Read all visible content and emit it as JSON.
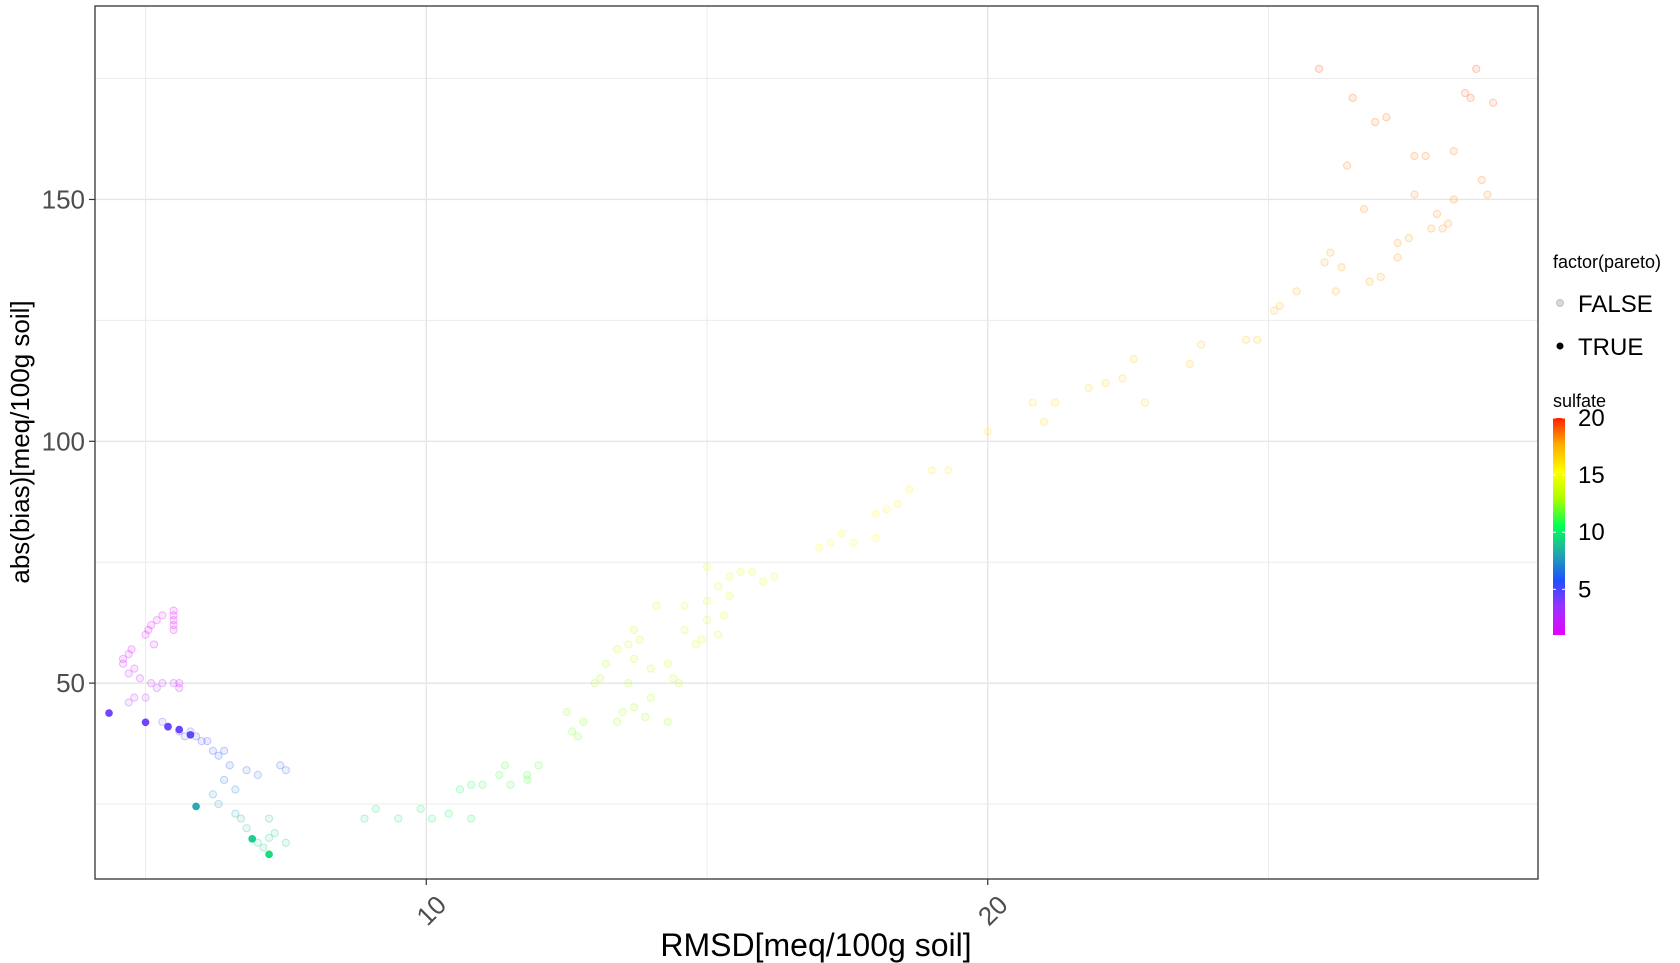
{
  "chart_data": {
    "type": "scatter",
    "xlabel": "RMSD[meq/100g soil]",
    "ylabel": "abs(bias)[meq/100g soil]",
    "xlim": [
      4.1,
      29.8
    ],
    "ylim": [
      9.5,
      190
    ],
    "x_ticks": [
      10,
      20
    ],
    "x_tick_labels": [
      "10",
      "20"
    ],
    "y_ticks": [
      50,
      100,
      150
    ],
    "y_tick_labels": [
      "50",
      "100",
      "150"
    ],
    "grid": true,
    "legend": {
      "position": "right",
      "shape_title": "factor(pareto)",
      "shape_entries": [
        "FALSE",
        "TRUE"
      ],
      "color_title": "sulfate",
      "color_ticks": [
        5,
        10,
        15,
        20
      ],
      "color_tick_labels": [
        "5",
        "10",
        "15",
        "20"
      ],
      "color_range": [
        1,
        20
      ],
      "colors": [
        "#e600ff",
        "#9933ff",
        "#1f4fff",
        "#22aaaa",
        "#00ff55",
        "#aaff00",
        "#ffff00",
        "#ffaa00",
        "#ff2200"
      ]
    },
    "series": [
      {
        "name": "FALSE",
        "points": [
          [
            4.6,
            55,
            1.5
          ],
          [
            4.7,
            56,
            1.5
          ],
          [
            4.6,
            54,
            1.8
          ],
          [
            4.8,
            53,
            1.8
          ],
          [
            4.75,
            57,
            1.6
          ],
          [
            4.7,
            52,
            2.0
          ],
          [
            4.9,
            51,
            2.0
          ],
          [
            4.8,
            47,
            2.6
          ],
          [
            4.7,
            46,
            2.8
          ],
          [
            5.0,
            47,
            2.7
          ],
          [
            5.1,
            50,
            2.2
          ],
          [
            5.2,
            49,
            2.4
          ],
          [
            5.3,
            50,
            2.2
          ],
          [
            5.0,
            60,
            1.2
          ],
          [
            5.05,
            61,
            1.2
          ],
          [
            5.1,
            62,
            1.2
          ],
          [
            5.2,
            63,
            1.1
          ],
          [
            5.3,
            64,
            1.1
          ],
          [
            5.5,
            65,
            1.0
          ],
          [
            5.5,
            64,
            1.0
          ],
          [
            5.5,
            63,
            1.0
          ],
          [
            5.5,
            62,
            1.0
          ],
          [
            5.5,
            61,
            1.0
          ],
          [
            5.15,
            58,
            1.3
          ],
          [
            5.6,
            50,
            2.0
          ],
          [
            5.6,
            49,
            2.2
          ],
          [
            5.5,
            50,
            2.0
          ],
          [
            5.3,
            42,
            4.0
          ],
          [
            5.4,
            41,
            4.2
          ],
          [
            5.6,
            40,
            4.4
          ],
          [
            5.7,
            39,
            4.6
          ],
          [
            5.8,
            40,
            4.5
          ],
          [
            5.9,
            39,
            4.8
          ],
          [
            6.0,
            38,
            5.0
          ],
          [
            6.1,
            38,
            5.2
          ],
          [
            6.2,
            36,
            5.4
          ],
          [
            6.3,
            35,
            5.6
          ],
          [
            6.4,
            36,
            5.5
          ],
          [
            6.5,
            33,
            6.0
          ],
          [
            6.4,
            30,
            6.5
          ],
          [
            6.6,
            28,
            7.0
          ],
          [
            6.2,
            27,
            7.2
          ],
          [
            6.3,
            25,
            7.5
          ],
          [
            6.8,
            32,
            6.2
          ],
          [
            7.0,
            31,
            6.5
          ],
          [
            7.4,
            33,
            6.2
          ],
          [
            7.5,
            32,
            6.4
          ],
          [
            6.6,
            23,
            8.0
          ],
          [
            6.7,
            22,
            8.2
          ],
          [
            6.8,
            20,
            8.5
          ],
          [
            7.0,
            17,
            9.0
          ],
          [
            7.1,
            16,
            9.2
          ],
          [
            7.2,
            18,
            9.0
          ],
          [
            7.3,
            19,
            8.8
          ],
          [
            7.5,
            17,
            9.0
          ],
          [
            7.2,
            22,
            8.5
          ],
          [
            8.9,
            22,
            9.6
          ],
          [
            9.1,
            24,
            9.8
          ],
          [
            9.5,
            22,
            10.0
          ],
          [
            9.9,
            24,
            10.1
          ],
          [
            10.1,
            22,
            10.2
          ],
          [
            10.4,
            23,
            10.3
          ],
          [
            10.6,
            28,
            10.5
          ],
          [
            10.8,
            29,
            10.7
          ],
          [
            10.8,
            22,
            10.4
          ],
          [
            11.0,
            29,
            10.9
          ],
          [
            11.3,
            31,
            11.2
          ],
          [
            11.4,
            33,
            11.4
          ],
          [
            11.5,
            29,
            11.2
          ],
          [
            11.8,
            31,
            11.5
          ],
          [
            11.8,
            30,
            11.5
          ],
          [
            12.0,
            33,
            11.6
          ],
          [
            12.5,
            44,
            12.2
          ],
          [
            12.6,
            40,
            12.2
          ],
          [
            12.7,
            39,
            12.2
          ],
          [
            12.8,
            42,
            12.3
          ],
          [
            13.0,
            50,
            12.8
          ],
          [
            13.1,
            51,
            12.8
          ],
          [
            13.2,
            54,
            13.0
          ],
          [
            13.4,
            57,
            13.2
          ],
          [
            13.6,
            58,
            13.4
          ],
          [
            13.7,
            61,
            13.6
          ],
          [
            13.8,
            59,
            13.4
          ],
          [
            13.7,
            55,
            13.2
          ],
          [
            13.6,
            50,
            13.0
          ],
          [
            13.5,
            44,
            12.8
          ],
          [
            13.4,
            42,
            12.6
          ],
          [
            13.7,
            45,
            12.8
          ],
          [
            13.9,
            43,
            12.6
          ],
          [
            14.0,
            53,
            13.2
          ],
          [
            14.0,
            47,
            13.0
          ],
          [
            14.1,
            66,
            14.0
          ],
          [
            14.3,
            42,
            12.8
          ],
          [
            14.3,
            54,
            13.4
          ],
          [
            14.4,
            51,
            13.2
          ],
          [
            14.6,
            61,
            13.8
          ],
          [
            14.6,
            66,
            14.0
          ],
          [
            14.5,
            50,
            13.2
          ],
          [
            14.8,
            58,
            13.8
          ],
          [
            14.9,
            59,
            13.9
          ],
          [
            15.0,
            63,
            14.0
          ],
          [
            15.0,
            67,
            14.2
          ],
          [
            15.0,
            74,
            14.4
          ],
          [
            15.2,
            60,
            13.9
          ],
          [
            15.2,
            70,
            14.2
          ],
          [
            15.3,
            64,
            14.1
          ],
          [
            15.4,
            68,
            14.3
          ],
          [
            15.4,
            72,
            14.4
          ],
          [
            15.6,
            73,
            14.4
          ],
          [
            15.8,
            73,
            14.5
          ],
          [
            16.0,
            71,
            14.6
          ],
          [
            16.2,
            72,
            14.6
          ],
          [
            17.0,
            78,
            15.0
          ],
          [
            17.2,
            79,
            15.1
          ],
          [
            17.4,
            81,
            15.2
          ],
          [
            17.6,
            79,
            15.1
          ],
          [
            18.0,
            80,
            15.2
          ],
          [
            18.0,
            85,
            15.4
          ],
          [
            18.2,
            86,
            15.5
          ],
          [
            18.4,
            87,
            15.6
          ],
          [
            18.6,
            90,
            15.6
          ],
          [
            19.0,
            94,
            15.8
          ],
          [
            19.3,
            94,
            15.9
          ],
          [
            20.0,
            102,
            16.1
          ],
          [
            20.8,
            108,
            16.3
          ],
          [
            21.0,
            104,
            16.4
          ],
          [
            21.2,
            108,
            16.4
          ],
          [
            21.8,
            111,
            16.6
          ],
          [
            22.1,
            112,
            16.7
          ],
          [
            22.4,
            113,
            16.7
          ],
          [
            22.6,
            117,
            16.8
          ],
          [
            22.8,
            108,
            16.6
          ],
          [
            23.6,
            116,
            16.9
          ],
          [
            23.8,
            120,
            17.0
          ],
          [
            24.6,
            121,
            17.1
          ],
          [
            24.8,
            121,
            17.2
          ],
          [
            25.1,
            127,
            17.4
          ],
          [
            25.2,
            128,
            17.4
          ],
          [
            25.5,
            131,
            17.6
          ],
          [
            26.0,
            137,
            17.8
          ],
          [
            26.1,
            139,
            17.9
          ],
          [
            26.2,
            131,
            17.7
          ],
          [
            26.3,
            136,
            17.8
          ],
          [
            26.4,
            157,
            18.5
          ],
          [
            26.5,
            171,
            19.0
          ],
          [
            26.7,
            148,
            18.2
          ],
          [
            26.8,
            133,
            17.8
          ],
          [
            26.9,
            166,
            18.9
          ],
          [
            27.1,
            167,
            18.9
          ],
          [
            27.3,
            141,
            18.0
          ],
          [
            27.5,
            142,
            18.0
          ],
          [
            27.6,
            159,
            18.6
          ],
          [
            27.8,
            159,
            18.6
          ],
          [
            27.9,
            144,
            18.1
          ],
          [
            28.0,
            147,
            18.2
          ],
          [
            28.1,
            144,
            18.1
          ],
          [
            28.2,
            145,
            18.2
          ],
          [
            28.3,
            160,
            18.6
          ],
          [
            28.3,
            150,
            18.4
          ],
          [
            28.5,
            172,
            19.1
          ],
          [
            28.6,
            171,
            19.1
          ],
          [
            28.7,
            177,
            19.5
          ],
          [
            28.8,
            154,
            18.5
          ],
          [
            28.9,
            151,
            18.4
          ],
          [
            29.0,
            170,
            19.1
          ],
          [
            25.9,
            177,
            19.4
          ],
          [
            27.3,
            138,
            18.0
          ],
          [
            27.0,
            134,
            17.9
          ],
          [
            27.6,
            151,
            18.4
          ]
        ]
      },
      {
        "name": "TRUE",
        "points": [
          [
            4.35,
            43.8,
            4.2
          ],
          [
            5.0,
            41.9,
            4.3
          ],
          [
            5.4,
            41.0,
            4.4
          ],
          [
            5.6,
            40.4,
            4.5
          ],
          [
            5.8,
            39.3,
            4.8
          ],
          [
            5.9,
            24.5,
            8.0
          ],
          [
            6.9,
            17.8,
            9.0
          ],
          [
            7.2,
            14.6,
            9.5
          ]
        ]
      }
    ]
  }
}
